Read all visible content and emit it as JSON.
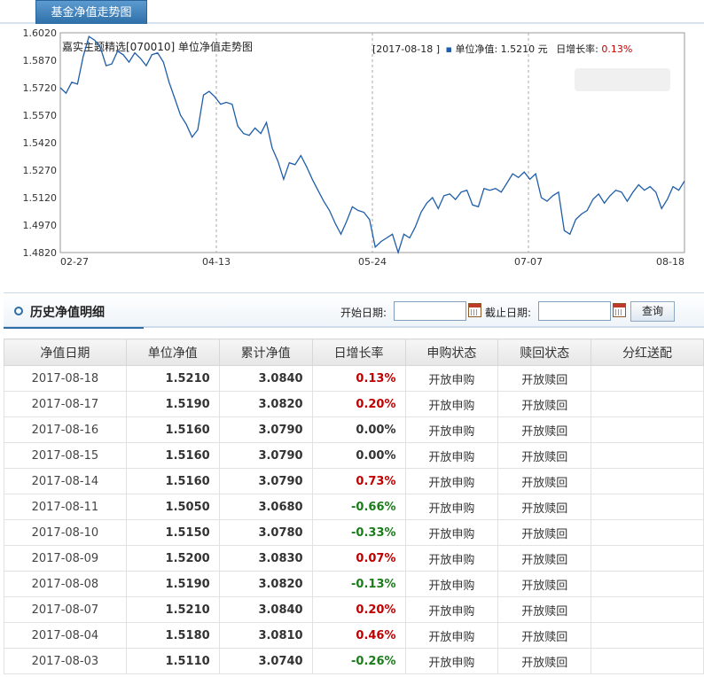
{
  "tab": {
    "label": "基金净值走势图"
  },
  "chart": {
    "title": "嘉实主题精选[070010] 单位净值走势图",
    "info_prefix": "[2017-08-18 ]",
    "info_series": "单位净值: 1.5210 元",
    "info_change_label": "日增长率:",
    "info_change_value": "0.13%",
    "colors": {
      "line": "#1f5da8",
      "up": "#c00000",
      "grid": "#bdbdbd"
    }
  },
  "chart_data": {
    "type": "line",
    "ylim": [
      1.482,
      1.602
    ],
    "yticks": [
      "1.6020",
      "1.5870",
      "1.5720",
      "1.5570",
      "1.5420",
      "1.5270",
      "1.5120",
      "1.4970",
      "1.4820"
    ],
    "xticks": [
      "02-27",
      "04-13",
      "05-24",
      "07-07",
      "08-18"
    ],
    "grid": "dashed vertical",
    "series": [
      {
        "values": [
          1.572,
          1.569,
          1.575,
          1.574,
          1.589,
          1.6,
          1.598,
          1.594,
          1.584,
          1.585,
          1.592,
          1.59,
          1.586,
          1.591,
          1.588,
          1.584,
          1.59,
          1.591,
          1.586,
          1.575,
          1.566,
          1.557,
          1.552,
          1.545,
          1.549,
          1.568,
          1.57,
          1.567,
          1.563,
          1.564,
          1.563,
          1.551,
          1.547,
          1.546,
          1.55,
          1.547,
          1.553,
          1.539,
          1.532,
          1.522,
          1.531,
          1.53,
          1.535,
          1.529,
          1.522,
          1.516,
          1.51,
          1.505,
          1.498,
          1.492,
          1.499,
          1.507,
          1.505,
          1.504,
          1.5,
          1.485,
          1.488,
          1.49,
          1.492,
          1.482,
          1.492,
          1.49,
          1.496,
          1.504,
          1.509,
          1.512,
          1.506,
          1.513,
          1.514,
          1.511,
          1.515,
          1.516,
          1.508,
          1.507,
          1.517,
          1.516,
          1.517,
          1.515,
          1.52,
          1.525,
          1.523,
          1.526,
          1.522,
          1.525,
          1.512,
          1.51,
          1.513,
          1.515,
          1.494,
          1.492,
          1.5,
          1.503,
          1.505,
          1.511,
          1.514,
          1.509,
          1.513,
          1.516,
          1.515,
          1.51,
          1.515,
          1.519,
          1.516,
          1.518,
          1.515,
          1.506,
          1.511,
          1.518,
          1.516,
          1.521
        ]
      }
    ]
  },
  "history": {
    "title": "历史净值明细",
    "start_label": "开始日期:",
    "end_label": "截止日期:",
    "start_value": "",
    "end_value": "",
    "query_label": "查询"
  },
  "table": {
    "headers": [
      "净值日期",
      "单位净值",
      "累计净值",
      "日增长率",
      "申购状态",
      "赎回状态",
      "分红送配"
    ],
    "rows": [
      [
        "2017-08-18",
        "1.5210",
        "3.0840",
        "0.13%",
        "开放申购",
        "开放赎回",
        ""
      ],
      [
        "2017-08-17",
        "1.5190",
        "3.0820",
        "0.20%",
        "开放申购",
        "开放赎回",
        ""
      ],
      [
        "2017-08-16",
        "1.5160",
        "3.0790",
        "0.00%",
        "开放申购",
        "开放赎回",
        ""
      ],
      [
        "2017-08-15",
        "1.5160",
        "3.0790",
        "0.00%",
        "开放申购",
        "开放赎回",
        ""
      ],
      [
        "2017-08-14",
        "1.5160",
        "3.0790",
        "0.73%",
        "开放申购",
        "开放赎回",
        ""
      ],
      [
        "2017-08-11",
        "1.5050",
        "3.0680",
        "-0.66%",
        "开放申购",
        "开放赎回",
        ""
      ],
      [
        "2017-08-10",
        "1.5150",
        "3.0780",
        "-0.33%",
        "开放申购",
        "开放赎回",
        ""
      ],
      [
        "2017-08-09",
        "1.5200",
        "3.0830",
        "0.07%",
        "开放申购",
        "开放赎回",
        ""
      ],
      [
        "2017-08-08",
        "1.5190",
        "3.0820",
        "-0.13%",
        "开放申购",
        "开放赎回",
        ""
      ],
      [
        "2017-08-07",
        "1.5210",
        "3.0840",
        "0.20%",
        "开放申购",
        "开放赎回",
        ""
      ],
      [
        "2017-08-04",
        "1.5180",
        "3.0810",
        "0.46%",
        "开放申购",
        "开放赎回",
        ""
      ],
      [
        "2017-08-03",
        "1.5110",
        "3.0740",
        "-0.26%",
        "开放申购",
        "开放赎回",
        ""
      ]
    ]
  }
}
